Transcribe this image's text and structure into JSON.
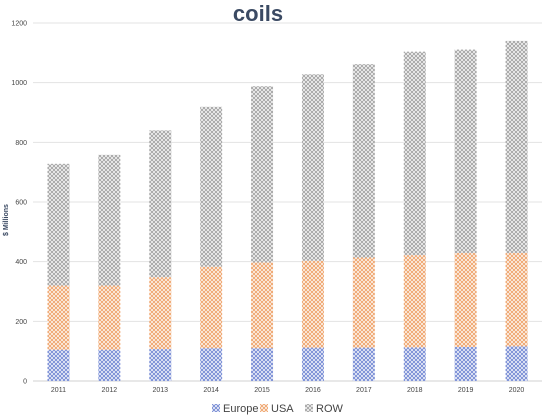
{
  "chart_data": {
    "type": "bar",
    "stacked": true,
    "title": "coils",
    "xlabel": "",
    "ylabel": "$ Millions",
    "ylim": [
      0,
      1200
    ],
    "yticks": [
      0,
      200,
      400,
      600,
      800,
      1000,
      1200
    ],
    "grid": true,
    "legend": "bottom",
    "categories": [
      "2011",
      "2012",
      "2013",
      "2014",
      "2015",
      "2016",
      "2017",
      "2018",
      "2019",
      "2020"
    ],
    "series": [
      {
        "name": "Europe",
        "color": "#7b8fd6",
        "values": [
          105,
          105,
          107,
          110,
          110,
          112,
          112,
          113,
          114,
          116
        ]
      },
      {
        "name": "USA",
        "color": "#f0a872",
        "values": [
          215,
          215,
          241,
          273,
          287,
          291,
          302,
          309,
          315,
          313
        ]
      },
      {
        "name": "ROW",
        "color": "#a8a8a8",
        "values": [
          408,
          438,
          492,
          536,
          591,
          625,
          648,
          682,
          682,
          711
        ]
      }
    ]
  }
}
